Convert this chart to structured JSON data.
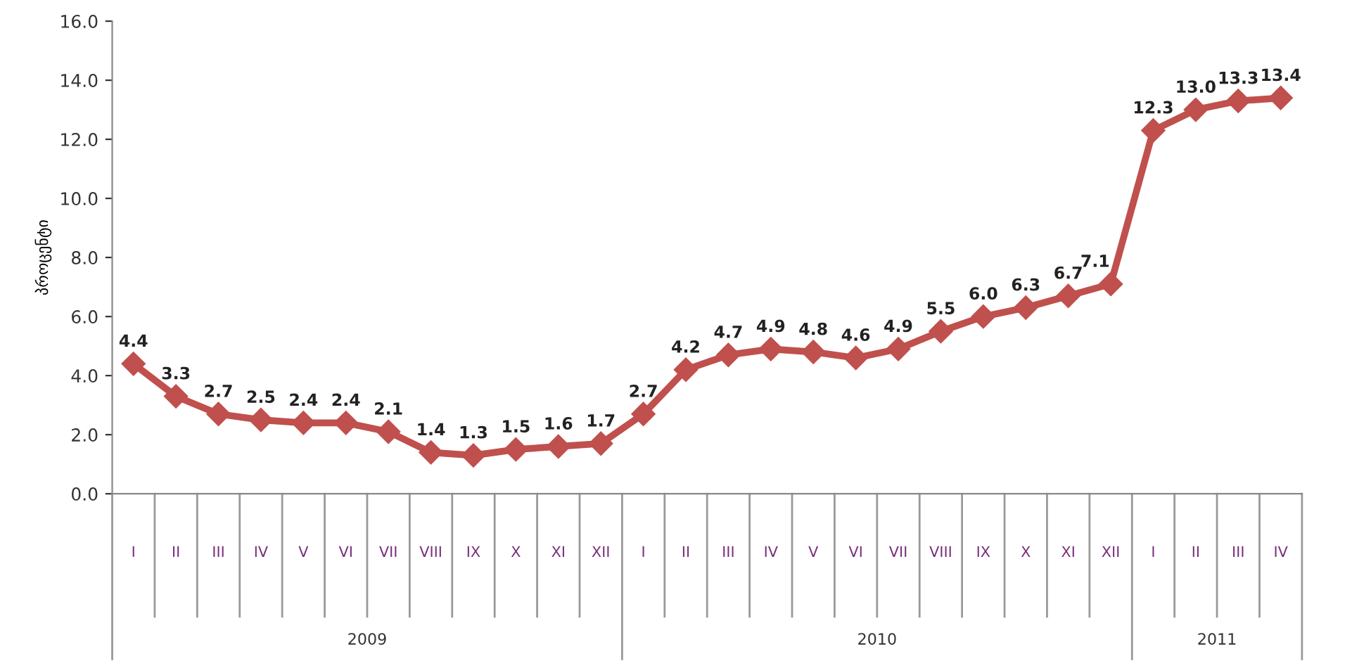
{
  "chart_data": {
    "type": "line",
    "ylabel": "პროცენტი",
    "categories": [
      "I",
      "II",
      "III",
      "IV",
      "V",
      "VI",
      "VII",
      "VIII",
      "IX",
      "X",
      "XI",
      "XII",
      "I",
      "II",
      "III",
      "IV",
      "V",
      "VI",
      "VII",
      "VIII",
      "IX",
      "X",
      "XI",
      "XII",
      "I",
      "II",
      "III",
      "IV"
    ],
    "series": [
      {
        "color": "#c0504d",
        "values": [
          4.4,
          3.3,
          2.7,
          2.5,
          2.4,
          2.4,
          2.1,
          1.4,
          1.3,
          1.5,
          1.6,
          1.7,
          2.7,
          4.2,
          4.7,
          4.9,
          4.8,
          4.6,
          4.9,
          5.5,
          6.0,
          6.3,
          6.7,
          7.1,
          12.3,
          13.0,
          13.3,
          13.4
        ],
        "value_labels": [
          "4.4",
          "3.3",
          "2.7",
          "2.5",
          "2.4",
          "2.4",
          "2.1",
          "1.4",
          "1.3",
          "1.5",
          "1.6",
          "1.7",
          "2.7",
          "4.2",
          "4.7",
          "4.9",
          "4.8",
          "4.6",
          "4.9",
          "5.5",
          "6.0",
          "6.3",
          "6.7",
          "7.1",
          "12.3",
          "13.0",
          "13.3",
          "13.4"
        ]
      }
    ],
    "annotations": [
      "2009",
      "2010",
      "2011"
    ],
    "ylim": [
      0,
      16
    ],
    "yticks": [
      {
        "value": 0,
        "label": "0.0"
      },
      {
        "value": 2,
        "label": "2.0"
      },
      {
        "value": 4,
        "label": "4.0"
      },
      {
        "value": 6,
        "label": "6.0"
      },
      {
        "value": 8,
        "label": "8.0"
      },
      {
        "value": 10,
        "label": "10.0"
      },
      {
        "value": 12,
        "label": "12.0"
      },
      {
        "value": 14,
        "label": "14.0"
      },
      {
        "value": 16,
        "label": "16.0"
      }
    ],
    "marker": "diamond",
    "line_style": "solid",
    "grid": false,
    "legend": false
  }
}
